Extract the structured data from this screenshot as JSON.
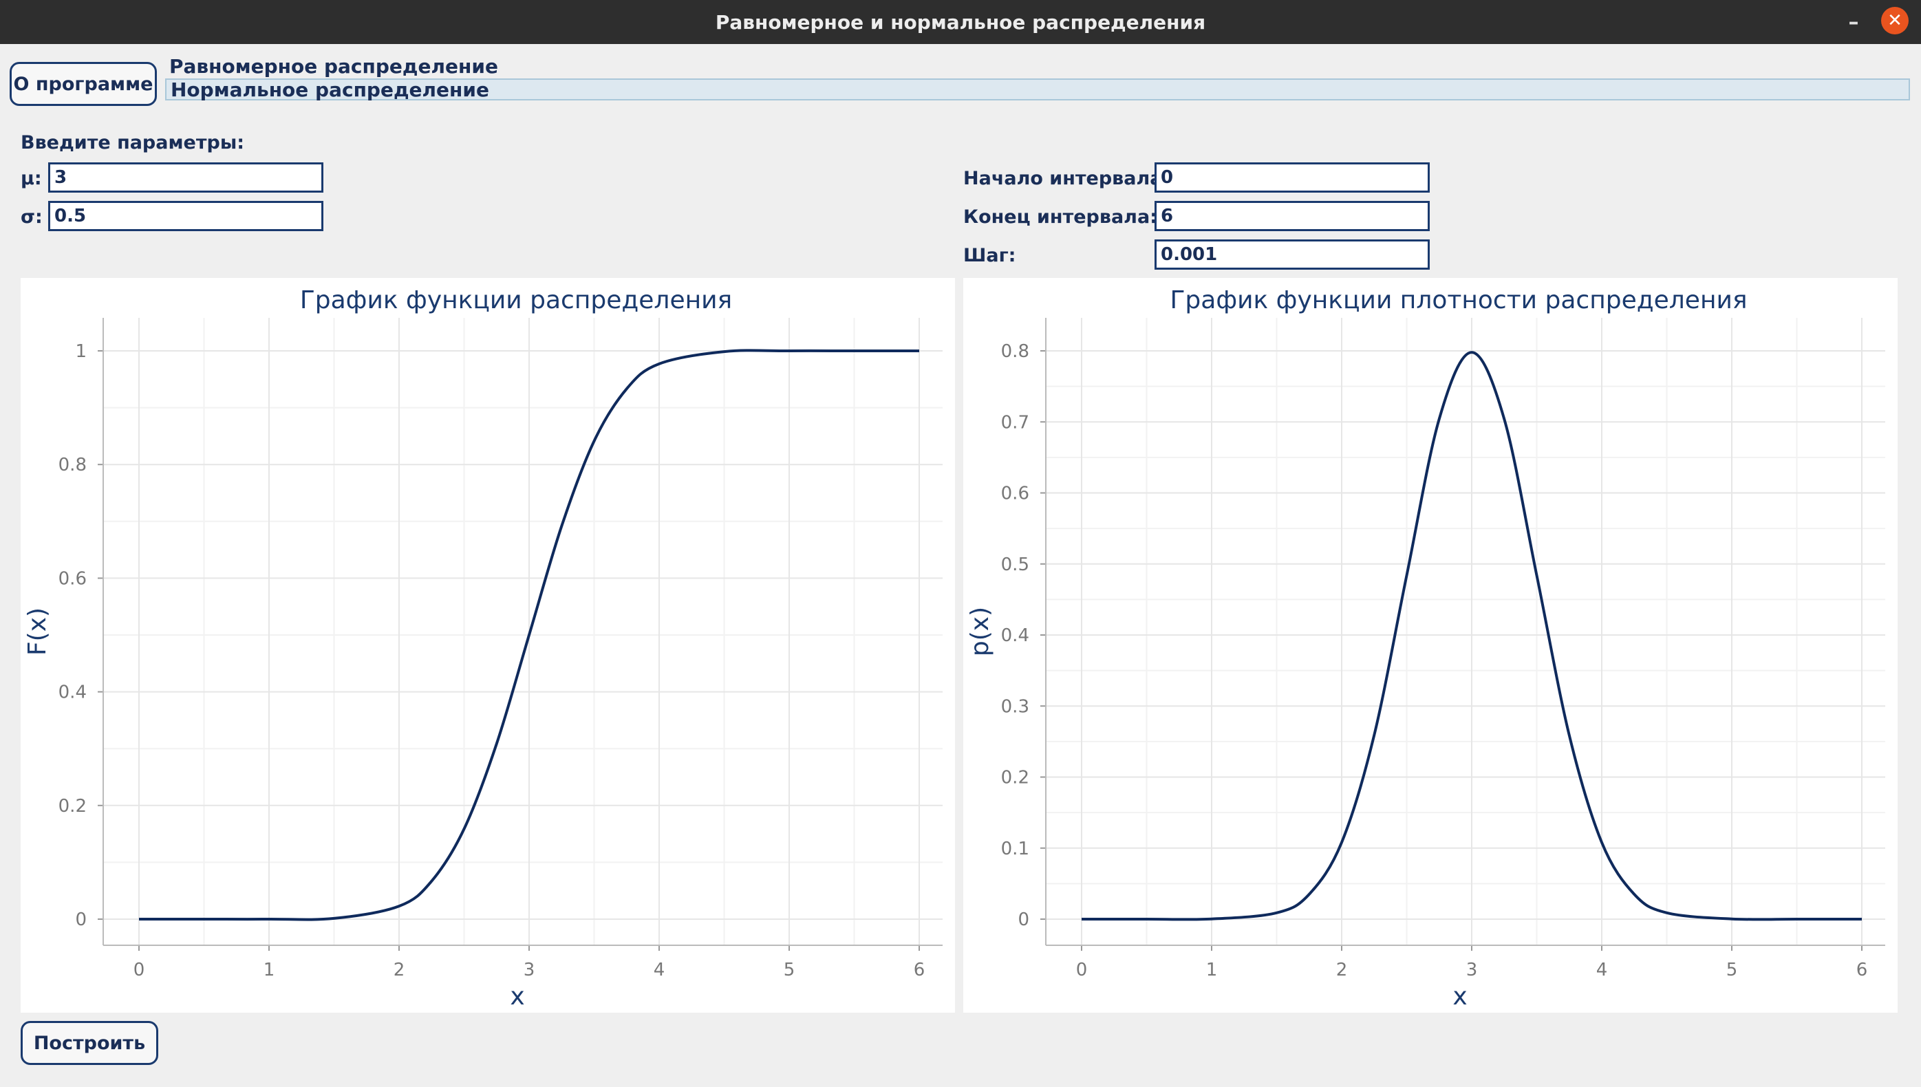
{
  "window": {
    "title": "Равномерное и нормальное распределения",
    "minimize_icon": "minimize-icon",
    "close_icon": "close-icon",
    "minimize_glyph": "–",
    "close_glyph": "✕"
  },
  "about_button": "О программе",
  "tabs": [
    {
      "label": "Равномерное распределение",
      "active": false
    },
    {
      "label": "Нормальное распределение",
      "active": true
    }
  ],
  "params": {
    "header": "Введите параметры:",
    "mu_label": "μ:",
    "mu_value": "3",
    "sigma_label": "σ:",
    "sigma_value": "0.5",
    "start_label": "Начало интервала:",
    "start_value": "0",
    "end_label": "Конец интервала:",
    "end_value": "6",
    "step_label": "Шаг:",
    "step_value": "0.001"
  },
  "build_button": "Построить",
  "colors": {
    "accent": "#1a3a6e",
    "curve": "#0f2a5c",
    "grid": "#e6e6e6"
  },
  "chart_data": [
    {
      "type": "line",
      "title": "График функции распределения",
      "xlabel": "x",
      "ylabel": "F(x)",
      "xlim": [
        0,
        6
      ],
      "ylim": [
        0,
        1
      ],
      "xticks": [
        "0",
        "1",
        "2",
        "3",
        "4",
        "5",
        "6"
      ],
      "yticks": [
        "0",
        "0.2",
        "0.4",
        "0.6",
        "0.8",
        "1"
      ],
      "grid": true,
      "series": [
        {
          "x": [
            0,
            0.5,
            1,
            1.5,
            2,
            2.25,
            2.5,
            2.75,
            3,
            3.25,
            3.5,
            3.75,
            4,
            4.5,
            5,
            5.5,
            6
          ],
          "y": [
            0,
            0,
            0,
            0.0013,
            0.0228,
            0.0668,
            0.1587,
            0.3085,
            0.5,
            0.6915,
            0.8413,
            0.9332,
            0.9772,
            0.9987,
            1,
            1,
            1
          ]
        }
      ]
    },
    {
      "type": "line",
      "title": "График функции плотности распределения",
      "xlabel": "x",
      "ylabel": "p(x)",
      "xlim": [
        0,
        6
      ],
      "ylim": [
        0,
        0.8
      ],
      "xticks": [
        "0",
        "1",
        "2",
        "3",
        "4",
        "5",
        "6"
      ],
      "yticks": [
        "0",
        "0.1",
        "0.2",
        "0.3",
        "0.4",
        "0.5",
        "0.6",
        "0.7",
        "0.8"
      ],
      "grid": true,
      "series": [
        {
          "x": [
            0,
            0.5,
            1,
            1.5,
            1.75,
            2,
            2.25,
            2.5,
            2.75,
            3,
            3.25,
            3.5,
            3.75,
            4,
            4.25,
            4.5,
            5,
            5.5,
            6
          ],
          "y": [
            0,
            0,
            0.0003,
            0.0089,
            0.035,
            0.108,
            0.259,
            0.4839,
            0.7041,
            0.7979,
            0.7041,
            0.4839,
            0.259,
            0.108,
            0.035,
            0.0089,
            0.0003,
            0,
            0
          ]
        }
      ]
    }
  ]
}
